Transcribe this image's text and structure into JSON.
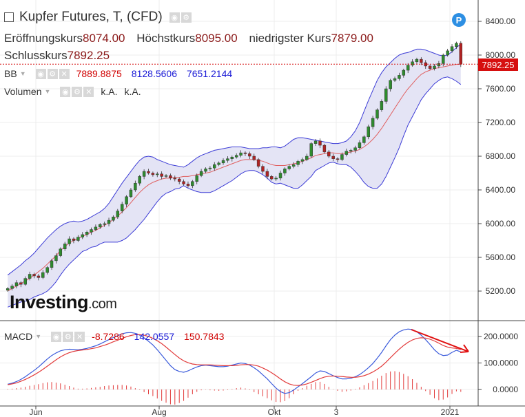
{
  "header": {
    "title": "Kupfer Futures, T, (CFD)",
    "open_label": "Eröffnungskurs",
    "open_value": "8074.00",
    "high_label": "Höchstkurs",
    "high_value": "8095.00",
    "low_label": "niedrigster Kurs",
    "low_value": "7879.00",
    "close_label": "Schlusskurs",
    "close_value": "7892.25"
  },
  "indicators": {
    "bb": {
      "label": "BB",
      "v1": "7889.8875",
      "v2": "8128.5606",
      "v3": "7651.2144"
    },
    "volume": {
      "label": "Volumen",
      "v1": "k.A.",
      "v2": "k.A."
    },
    "macd": {
      "label": "MACD",
      "v1": "-8.7286",
      "v2": "142.0557",
      "v3": "150.7843"
    }
  },
  "badge": "P",
  "price_tag": "7892.25",
  "logo": {
    "main": "Investing",
    "suffix": ".com"
  },
  "colors": {
    "up": "#2e8b2e",
    "down": "#b22222",
    "band": "#3b3bd6",
    "band_fill": "#e4e4f5",
    "ma": "#e06060",
    "signal": "#e23a3a",
    "macd": "#3b5bdb",
    "tag": "#d60f0f"
  },
  "chart_data": [
    {
      "type": "candlestick",
      "title": "Kupfer Futures, T, (CFD)",
      "y_ticks": [
        5200,
        5600,
        6000,
        6400,
        6800,
        7200,
        7600,
        8000,
        8400
      ],
      "ylim": [
        5050,
        8560
      ],
      "x_ticks": [
        "Jun",
        "Aug",
        "Okt",
        "3",
        "2021"
      ],
      "last_price": 7892.25,
      "series": [
        {
          "name": "close",
          "values": [
            5230,
            5260,
            5300,
            5280,
            5350,
            5400,
            5380,
            5360,
            5420,
            5480,
            5560,
            5620,
            5700,
            5760,
            5820,
            5800,
            5840,
            5870,
            5900,
            5930,
            5960,
            5990,
            6000,
            6040,
            6080,
            6150,
            6230,
            6320,
            6400,
            6480,
            6560,
            6620,
            6600,
            6580,
            6590,
            6560,
            6570,
            6540,
            6530,
            6500,
            6470,
            6450,
            6500,
            6570,
            6620,
            6650,
            6660,
            6700,
            6720,
            6750,
            6770,
            6790,
            6810,
            6840,
            6830,
            6800,
            6760,
            6680,
            6620,
            6560,
            6530,
            6540,
            6600,
            6650,
            6680,
            6700,
            6740,
            6760,
            6800,
            6950,
            6980,
            6930,
            6850,
            6800,
            6770,
            6760,
            6820,
            6860,
            6870,
            6900,
            6960,
            7030,
            7150,
            7250,
            7350,
            7450,
            7600,
            7700,
            7720,
            7760,
            7820,
            7880,
            7920,
            7950,
            7910,
            7870,
            7840,
            7870,
            7900,
            8000,
            8050,
            8100,
            8140,
            7892
          ]
        },
        {
          "name": "mid",
          "values": [
            5200,
            5230,
            5260,
            5290,
            5320,
            5350,
            5390,
            5430,
            5470,
            5520,
            5570,
            5620,
            5680,
            5730,
            5770,
            5800,
            5820,
            5850,
            5870,
            5900,
            5920,
            5950,
            5980,
            6010,
            6050,
            6090,
            6140,
            6190,
            6250,
            6310,
            6370,
            6420,
            6460,
            6490,
            6510,
            6530,
            6540,
            6540,
            6550,
            6550,
            6560,
            6560,
            6570,
            6580,
            6590,
            6600,
            6610,
            6630,
            6650,
            6670,
            6690,
            6710,
            6730,
            6750,
            6760,
            6760,
            6760,
            6750,
            6740,
            6720,
            6700,
            6690,
            6690,
            6690,
            6700,
            6710,
            6720,
            6740,
            6760,
            6780,
            6810,
            6820,
            6830,
            6840,
            6840,
            6830,
            6830,
            6840,
            6850,
            6860,
            6880,
            6910,
            6950,
            7000,
            7060,
            7130,
            7210,
            7290,
            7370,
            7450,
            7530,
            7600,
            7660,
            7720,
            7770,
            7800,
            7820,
            7840,
            7850,
            7860,
            7870,
            7880,
            7890,
            7890
          ]
        },
        {
          "name": "upper",
          "values": [
            5390,
            5430,
            5470,
            5510,
            5560,
            5600,
            5650,
            5710,
            5770,
            5830,
            5880,
            5930,
            5970,
            6000,
            6020,
            6030,
            6020,
            6030,
            6050,
            6080,
            6110,
            6140,
            6180,
            6240,
            6320,
            6400,
            6480,
            6550,
            6620,
            6690,
            6750,
            6790,
            6800,
            6790,
            6760,
            6740,
            6720,
            6700,
            6690,
            6680,
            6670,
            6700,
            6740,
            6780,
            6810,
            6830,
            6850,
            6870,
            6880,
            6890,
            6900,
            6910,
            6910,
            6910,
            6900,
            6890,
            6890,
            6890,
            6900,
            6900,
            6910,
            6910,
            6900,
            6920,
            6960,
            7000,
            7020,
            7020,
            7010,
            7000,
            6990,
            6980,
            6970,
            6960,
            6950,
            6950,
            6960,
            6980,
            7030,
            7100,
            7200,
            7330,
            7460,
            7580,
            7700,
            7790,
            7860,
            7910,
            7960,
            8000,
            8020,
            8030,
            8050,
            8070,
            8070,
            8060,
            8040,
            8020,
            8000,
            7990,
            8000,
            8040,
            8090,
            8129
          ]
        },
        {
          "name": "lower",
          "values": [
            5010,
            5030,
            5050,
            5070,
            5080,
            5100,
            5130,
            5150,
            5170,
            5200,
            5250,
            5310,
            5390,
            5460,
            5520,
            5570,
            5620,
            5670,
            5690,
            5720,
            5730,
            5760,
            5780,
            5780,
            5780,
            5780,
            5800,
            5830,
            5880,
            5930,
            5990,
            6050,
            6120,
            6190,
            6260,
            6320,
            6360,
            6380,
            6410,
            6420,
            6450,
            6420,
            6400,
            6380,
            6370,
            6370,
            6370,
            6390,
            6420,
            6450,
            6480,
            6510,
            6550,
            6590,
            6620,
            6630,
            6630,
            6610,
            6580,
            6540,
            6490,
            6470,
            6480,
            6460,
            6440,
            6420,
            6420,
            6460,
            6510,
            6560,
            6630,
            6660,
            6690,
            6720,
            6730,
            6710,
            6700,
            6700,
            6670,
            6620,
            6560,
            6490,
            6440,
            6420,
            6420,
            6470,
            6560,
            6670,
            6780,
            6900,
            7040,
            7170,
            7270,
            7370,
            7470,
            7540,
            7600,
            7660,
            7700,
            7730,
            7740,
            7720,
            7690,
            7651
          ]
        }
      ]
    },
    {
      "type": "line",
      "name": "MACD",
      "y_ticks": [
        0,
        100,
        200
      ],
      "ylim": [
        -30,
        240
      ],
      "series": [
        {
          "name": "macd",
          "values": [
            20,
            24,
            30,
            38,
            48,
            60,
            72,
            85,
            100,
            115,
            128,
            138,
            146,
            150,
            152,
            151,
            150,
            152,
            155,
            160,
            165,
            172,
            180,
            188,
            196,
            203,
            210,
            214,
            215,
            212,
            205,
            195,
            182,
            168,
            150,
            130,
            110,
            90,
            75,
            68,
            65,
            70,
            78,
            85,
            90,
            92,
            90,
            88,
            86,
            86,
            88,
            92,
            96,
            100,
            98,
            92,
            82,
            70,
            55,
            40,
            22,
            5,
            -8,
            -15,
            -12,
            -2,
            10,
            22,
            35,
            48,
            62,
            70,
            68,
            60,
            52,
            45,
            40,
            40,
            42,
            48,
            56,
            68,
            82,
            98,
            118,
            140,
            165,
            188,
            205,
            218,
            225,
            228,
            226,
            218,
            205,
            188,
            170,
            150,
            135,
            128,
            130,
            140,
            148,
            142
          ]
        },
        {
          "name": "signal",
          "values": [
            18,
            21,
            25,
            31,
            38,
            46,
            55,
            65,
            76,
            88,
            100,
            112,
            123,
            132,
            139,
            144,
            147,
            149,
            151,
            154,
            157,
            162,
            167,
            173,
            180,
            186,
            193,
            199,
            204,
            207,
            207,
            205,
            200,
            193,
            184,
            173,
            160,
            146,
            132,
            119,
            108,
            101,
            96,
            94,
            93,
            93,
            93,
            92,
            91,
            90,
            90,
            90,
            91,
            93,
            94,
            94,
            92,
            88,
            81,
            73,
            63,
            52,
            40,
            29,
            21,
            16,
            15,
            17,
            21,
            27,
            34,
            41,
            47,
            50,
            51,
            50,
            49,
            47,
            46,
            46,
            48,
            52,
            58,
            66,
            76,
            88,
            103,
            120,
            136,
            152,
            166,
            178,
            187,
            193,
            195,
            194,
            190,
            183,
            175,
            166,
            160,
            157,
            155,
            151
          ]
        }
      ]
    }
  ]
}
